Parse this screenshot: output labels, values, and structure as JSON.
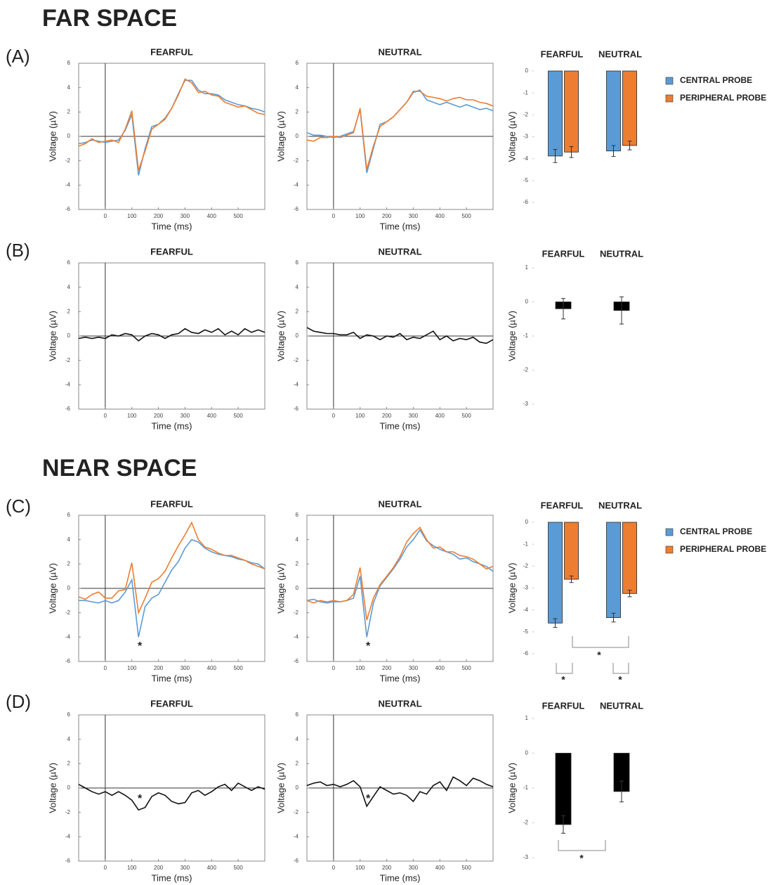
{
  "headings": [
    "FAR SPACE",
    "NEAR SPACE"
  ],
  "panel_labels": [
    "(A)",
    "(B)",
    "(C)",
    "(D)"
  ],
  "chart_data": [
    {
      "type": "line",
      "title": "FEARFUL",
      "xlabel": "Time (ms)",
      "ylabel": "Voltage (µV)",
      "x": [
        -100,
        -75,
        -50,
        -25,
        0,
        25,
        50,
        75,
        100,
        125,
        150,
        175,
        200,
        225,
        250,
        275,
        300,
        325,
        350,
        375,
        400,
        425,
        450,
        475,
        500,
        525,
        550,
        575,
        600
      ],
      "xlim": [
        -100,
        600
      ],
      "xticks": [
        0,
        100,
        200,
        300,
        400,
        500
      ],
      "ylim": [
        -6,
        6
      ],
      "yticks": [
        -6,
        -4,
        -2,
        0,
        2,
        4,
        6
      ],
      "series": [
        {
          "name": "CENTRAL PROBE",
          "color": "#5b9bd5",
          "values": [
            -0.6,
            -0.5,
            -0.3,
            -0.4,
            -0.5,
            -0.4,
            -0.3,
            0.5,
            1.8,
            -3.2,
            -1.0,
            0.8,
            1.0,
            1.5,
            2.3,
            3.5,
            4.6,
            4.6,
            3.8,
            3.5,
            3.5,
            3.4,
            3.0,
            2.8,
            2.6,
            2.5,
            2.3,
            2.2,
            2.0
          ]
        },
        {
          "name": "PERIPHERAL PROBE",
          "color": "#ed7d31",
          "values": [
            -0.8,
            -0.6,
            -0.2,
            -0.5,
            -0.4,
            -0.3,
            -0.5,
            0.6,
            2.1,
            -2.8,
            -1.2,
            0.6,
            1.0,
            1.4,
            2.3,
            3.4,
            4.7,
            4.4,
            3.6,
            3.7,
            3.4,
            3.3,
            2.8,
            2.6,
            2.4,
            2.5,
            2.2,
            1.9,
            1.8
          ]
        }
      ]
    },
    {
      "type": "line",
      "title": "NEUTRAL",
      "xlabel": "Time (ms)",
      "ylabel": "Voltage (µV)",
      "x": [
        -100,
        -75,
        -50,
        -25,
        0,
        25,
        50,
        75,
        100,
        125,
        150,
        175,
        200,
        225,
        250,
        275,
        300,
        325,
        350,
        375,
        400,
        425,
        450,
        475,
        500,
        525,
        550,
        575,
        600
      ],
      "xlim": [
        -100,
        600
      ],
      "xticks": [
        0,
        100,
        200,
        300,
        400,
        500
      ],
      "ylim": [
        -6,
        6
      ],
      "yticks": [
        -6,
        -4,
        -2,
        0,
        2,
        4,
        6
      ],
      "series": [
        {
          "name": "CENTRAL PROBE",
          "color": "#5b9bd5",
          "values": [
            0.3,
            0.1,
            0.1,
            0,
            -0.1,
            0,
            0.2,
            0.4,
            2.2,
            -3.0,
            -1.0,
            1.0,
            1.2,
            1.6,
            2.2,
            2.8,
            3.6,
            3.8,
            3.0,
            2.8,
            2.6,
            2.8,
            2.6,
            2.4,
            2.6,
            2.4,
            2.2,
            2.3,
            2.1
          ]
        },
        {
          "name": "PERIPHERAL PROBE",
          "color": "#ed7d31",
          "values": [
            -0.3,
            -0.4,
            -0.1,
            -0.1,
            0,
            -0.1,
            0.1,
            0.3,
            2.3,
            -2.7,
            -0.8,
            0.8,
            1.2,
            1.6,
            2.2,
            2.8,
            3.7,
            3.7,
            3.3,
            3.2,
            3.1,
            2.9,
            3.1,
            3.2,
            3.0,
            3.0,
            2.8,
            2.7,
            2.5
          ]
        }
      ]
    },
    {
      "type": "bar",
      "categories": [
        "FEARFUL",
        "NEUTRAL"
      ],
      "ylabel": "Voltage (µV)",
      "ylim": [
        -6,
        0
      ],
      "yticks": [
        0,
        -1,
        -2,
        -3,
        -4,
        -5,
        -6
      ],
      "series": [
        {
          "name": "CENTRAL PROBE",
          "color": "#5b9bd5",
          "values": [
            -3.88,
            -3.65
          ],
          "errors": [
            0.3,
            0.25
          ]
        },
        {
          "name": "PERIPHERAL PROBE",
          "color": "#ed7d31",
          "values": [
            -3.7,
            -3.4
          ],
          "errors": [
            0.25,
            0.2
          ]
        }
      ]
    },
    {
      "type": "line",
      "title": "FEARFUL",
      "xlabel": "Time (ms)",
      "ylabel": "Voltage (µV)",
      "x": [
        -100,
        -75,
        -50,
        -25,
        0,
        25,
        50,
        75,
        100,
        125,
        150,
        175,
        200,
        225,
        250,
        275,
        300,
        325,
        350,
        375,
        400,
        425,
        450,
        475,
        500,
        525,
        550,
        575,
        600
      ],
      "xlim": [
        -100,
        600
      ],
      "xticks": [
        0,
        100,
        200,
        300,
        400,
        500
      ],
      "ylim": [
        -6,
        6
      ],
      "yticks": [
        -6,
        -4,
        -2,
        0,
        2,
        4,
        6
      ],
      "series": [
        {
          "color": "#111111",
          "values": [
            -0.2,
            -0.1,
            -0.2,
            -0.1,
            -0.2,
            0.1,
            0,
            0.2,
            0.1,
            -0.4,
            0,
            0.2,
            0.1,
            -0.2,
            0.1,
            0.2,
            0.6,
            0.3,
            0.2,
            0.5,
            0.3,
            0.6,
            0.1,
            0.4,
            0.1,
            0.6,
            0.3,
            0.5,
            0.3
          ]
        }
      ]
    },
    {
      "type": "line",
      "title": "NEUTRAL",
      "xlabel": "Time (ms)",
      "ylabel": "Voltage (µV)",
      "x": [
        -100,
        -75,
        -50,
        -25,
        0,
        25,
        50,
        75,
        100,
        125,
        150,
        175,
        200,
        225,
        250,
        275,
        300,
        325,
        350,
        375,
        400,
        425,
        450,
        475,
        500,
        525,
        550,
        575,
        600
      ],
      "xlim": [
        -100,
        600
      ],
      "xticks": [
        0,
        100,
        200,
        300,
        400,
        500
      ],
      "ylim": [
        -6,
        6
      ],
      "yticks": [
        -6,
        -4,
        -2,
        0,
        2,
        4,
        6
      ],
      "series": [
        {
          "color": "#111111",
          "values": [
            0.7,
            0.4,
            0.3,
            0.2,
            0.2,
            0.1,
            0.1,
            0.3,
            -0.2,
            0.1,
            0,
            -0.3,
            0,
            -0.1,
            0.2,
            -0.3,
            -0.1,
            -0.2,
            0.1,
            0.4,
            -0.3,
            0,
            -0.4,
            -0.2,
            -0.3,
            -0.1,
            -0.5,
            -0.6,
            -0.3
          ]
        }
      ]
    },
    {
      "type": "bar",
      "categories": [
        "FEARFUL",
        "NEUTRAL"
      ],
      "ylabel": "Voltage (µV)",
      "ylim": [
        -3,
        1
      ],
      "yticks": [
        1,
        0,
        -1,
        -2,
        -3
      ],
      "series": [
        {
          "color": "#000000",
          "values": [
            -0.2,
            -0.25
          ],
          "errors": [
            0.3,
            0.4
          ]
        }
      ]
    },
    {
      "type": "line",
      "title": "FEARFUL",
      "xlabel": "Time (ms)",
      "ylabel": "Voltage (µV)",
      "x": [
        -100,
        -75,
        -50,
        -25,
        0,
        25,
        50,
        75,
        100,
        125,
        150,
        175,
        200,
        225,
        250,
        275,
        300,
        325,
        350,
        375,
        400,
        425,
        450,
        475,
        500,
        525,
        550,
        575,
        600
      ],
      "xlim": [
        -100,
        600
      ],
      "xticks": [
        0,
        100,
        200,
        300,
        400,
        500
      ],
      "ylim": [
        -6,
        6
      ],
      "yticks": [
        -6,
        -4,
        -2,
        0,
        2,
        4,
        6
      ],
      "series": [
        {
          "name": "CENTRAL PROBE",
          "color": "#5b9bd5",
          "values": [
            -1.0,
            -1.0,
            -1.1,
            -1.2,
            -1.0,
            -1.2,
            -1.0,
            -0.3,
            0.7,
            -4.0,
            -1.5,
            -0.8,
            -0.5,
            0.5,
            1.5,
            2.2,
            3.3,
            4.0,
            3.8,
            3.3,
            3.0,
            2.8,
            2.7,
            2.6,
            2.4,
            2.3,
            2.1,
            2.0,
            1.6
          ]
        },
        {
          "name": "PERIPHERAL PROBE",
          "color": "#ed7d31",
          "values": [
            -0.7,
            -0.9,
            -0.5,
            -0.3,
            -0.8,
            -0.8,
            -0.2,
            -0.1,
            2.1,
            -2.0,
            -0.8,
            0.5,
            0.8,
            1.4,
            2.5,
            3.5,
            4.4,
            5.4,
            4.0,
            3.4,
            3.2,
            2.9,
            2.7,
            2.7,
            2.5,
            2.3,
            2.0,
            1.8,
            1.6
          ]
        }
      ],
      "annotations": [
        "*"
      ]
    },
    {
      "type": "line",
      "title": "NEUTRAL",
      "xlabel": "Time (ms)",
      "ylabel": "Voltage (µV)",
      "x": [
        -100,
        -75,
        -50,
        -25,
        0,
        25,
        50,
        75,
        100,
        125,
        150,
        175,
        200,
        225,
        250,
        275,
        300,
        325,
        350,
        375,
        400,
        425,
        450,
        475,
        500,
        525,
        550,
        575,
        600
      ],
      "xlim": [
        -100,
        600
      ],
      "xticks": [
        0,
        100,
        200,
        300,
        400,
        500
      ],
      "ylim": [
        -6,
        6
      ],
      "yticks": [
        -6,
        -4,
        -2,
        0,
        2,
        4,
        6
      ],
      "series": [
        {
          "name": "CENTRAL PROBE",
          "color": "#5b9bd5",
          "values": [
            -1.0,
            -0.9,
            -1.1,
            -1.2,
            -1.1,
            -1.1,
            -1.0,
            -0.8,
            1.0,
            -4.0,
            -1.2,
            0.2,
            0.9,
            1.6,
            2.4,
            3.4,
            4.0,
            4.8,
            3.9,
            3.5,
            3.2,
            3.0,
            2.8,
            2.4,
            2.5,
            2.2,
            2.0,
            1.8,
            1.4
          ]
        },
        {
          "name": "PERIPHERAL PROBE",
          "color": "#ed7d31",
          "values": [
            -1.0,
            -1.2,
            -1.0,
            -1.1,
            -1.0,
            -1.1,
            -1.0,
            -0.5,
            1.7,
            -2.6,
            -0.8,
            0.3,
            1.0,
            1.7,
            2.6,
            3.8,
            4.5,
            5.0,
            4.0,
            3.3,
            3.4,
            3.0,
            3.0,
            2.7,
            2.6,
            2.4,
            2.0,
            1.6,
            1.8
          ]
        }
      ],
      "annotations": [
        "*"
      ]
    },
    {
      "type": "bar",
      "categories": [
        "FEARFUL",
        "NEUTRAL"
      ],
      "ylabel": "Voltage (µV)",
      "ylim": [
        -6,
        0
      ],
      "yticks": [
        0,
        -1,
        -2,
        -3,
        -4,
        -5,
        -6
      ],
      "series": [
        {
          "name": "CENTRAL PROBE",
          "color": "#5b9bd5",
          "values": [
            -4.6,
            -4.35
          ],
          "errors": [
            0.2,
            0.2
          ]
        },
        {
          "name": "PERIPHERAL PROBE",
          "color": "#ed7d31",
          "values": [
            -2.6,
            -3.25
          ],
          "errors": [
            0.15,
            0.15
          ]
        }
      ],
      "annotations": [
        "*",
        "*",
        "*"
      ]
    },
    {
      "type": "line",
      "title": "FEARFUL",
      "xlabel": "Time (ms)",
      "ylabel": "Voltage (µV)",
      "x": [
        -100,
        -75,
        -50,
        -25,
        0,
        25,
        50,
        75,
        100,
        125,
        150,
        175,
        200,
        225,
        250,
        275,
        300,
        325,
        350,
        375,
        400,
        425,
        450,
        475,
        500,
        525,
        550,
        575,
        600
      ],
      "xlim": [
        -100,
        600
      ],
      "xticks": [
        0,
        100,
        200,
        300,
        400,
        500
      ],
      "ylim": [
        -6,
        6
      ],
      "yticks": [
        -6,
        -4,
        -2,
        0,
        2,
        4,
        6
      ],
      "series": [
        {
          "color": "#111111",
          "values": [
            0.3,
            0,
            -0.3,
            -0.5,
            -0.3,
            -0.6,
            -0.3,
            -0.6,
            -1.0,
            -1.8,
            -1.6,
            -0.7,
            -0.4,
            -0.6,
            -1.1,
            -1.3,
            -1.2,
            -0.4,
            -0.2,
            -0.6,
            -0.3,
            0.1,
            0.3,
            -0.2,
            0.4,
            0.1,
            -0.2,
            0.1,
            -0.1
          ]
        }
      ],
      "annotations": [
        "*"
      ]
    },
    {
      "type": "line",
      "title": "NEUTRAL",
      "xlabel": "Time (ms)",
      "ylabel": "Voltage (µV)",
      "x": [
        -100,
        -75,
        -50,
        -25,
        0,
        25,
        50,
        75,
        100,
        125,
        150,
        175,
        200,
        225,
        250,
        275,
        300,
        325,
        350,
        375,
        400,
        425,
        450,
        475,
        500,
        525,
        550,
        575,
        600
      ],
      "xlim": [
        -100,
        600
      ],
      "xticks": [
        0,
        100,
        200,
        300,
        400,
        500
      ],
      "ylim": [
        -6,
        6
      ],
      "yticks": [
        -6,
        -4,
        -2,
        0,
        2,
        4,
        6
      ],
      "series": [
        {
          "color": "#111111",
          "values": [
            0.2,
            0.4,
            0.5,
            0.2,
            0.3,
            0.1,
            0.3,
            0.6,
            0.1,
            -1.5,
            -0.7,
            0.1,
            -0.2,
            -0.5,
            -0.4,
            -0.6,
            -1.1,
            -0.3,
            -0.5,
            0.2,
            0.5,
            -0.2,
            0.9,
            0.6,
            0.2,
            0.8,
            0.6,
            0.3,
            0.1
          ]
        }
      ],
      "annotations": [
        "*"
      ]
    },
    {
      "type": "bar",
      "categories": [
        "FEARFUL",
        "NEUTRAL"
      ],
      "ylabel": "Voltage (µV)",
      "ylim": [
        -3,
        1
      ],
      "yticks": [
        1,
        0,
        -1,
        -2,
        -3
      ],
      "series": [
        {
          "color": "#000000",
          "values": [
            -2.05,
            -1.1
          ],
          "errors": [
            0.25,
            0.3
          ]
        }
      ],
      "annotations": [
        "*"
      ]
    }
  ]
}
